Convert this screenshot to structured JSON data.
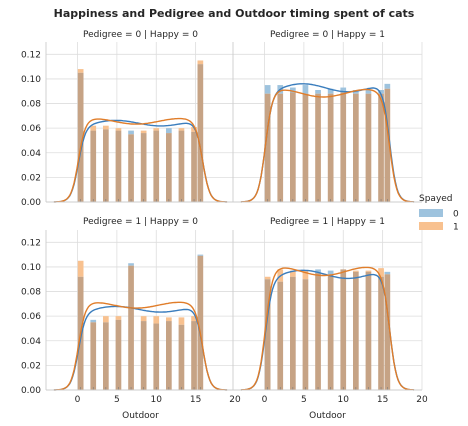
{
  "chart_data": {
    "type": "bar",
    "title": "Happiness and Pedigree and Outdoor timing spent of cats",
    "xlabel": "Outdoor",
    "ylabel": "",
    "xlim": [
      -4,
      20
    ],
    "ylim": [
      0,
      0.13
    ],
    "xticks": [
      "0",
      "5",
      "10",
      "15",
      "20"
    ],
    "yticks": [
      "0.00",
      "0.02",
      "0.04",
      "0.06",
      "0.08",
      "0.10",
      "0.12"
    ],
    "grid": true,
    "legend": {
      "title": "Spayed",
      "placement": "right",
      "entries": [
        {
          "label": "0",
          "color": "#9ec3de"
        },
        {
          "label": "1",
          "color": "#f8c18f"
        }
      ]
    },
    "overlap_color": "#c6a385",
    "line_colors": {
      "0": "#3a7dbd",
      "1": "#e07d2a"
    },
    "bin_edges": [
      0,
      0.8,
      1.6,
      2.4,
      3.2,
      4.0,
      4.8,
      5.6,
      6.4,
      7.2,
      8.0,
      8.8,
      9.6,
      10.4,
      11.2,
      12.0,
      12.8,
      13.6,
      14.4,
      15.2,
      16.0
    ],
    "panels": [
      {
        "title": "Pedigree = 0 | Happy = 0",
        "series": [
          {
            "name": "0",
            "values": [
              0.105,
              0,
              0.058,
              0,
              0.059,
              0,
              0.058,
              0,
              0.058,
              0,
              0.056,
              0,
              0.058,
              0,
              0.06,
              0,
              0.058,
              0,
              0.057,
              0.112
            ]
          },
          {
            "name": "1",
            "values": [
              0.108,
              0,
              0.062,
              0,
              0.062,
              0,
              0.06,
              0,
              0.055,
              0,
              0.058,
              0,
              0.06,
              0,
              0.056,
              0,
              0.06,
              0,
              0.061,
              0.115
            ]
          }
        ]
      },
      {
        "title": "Pedigree = 0 | Happy = 1",
        "series": [
          {
            "name": "0",
            "values": [
              0.095,
              0,
              0.095,
              0,
              0.093,
              0,
              0.095,
              0,
              0.091,
              0,
              0.092,
              0,
              0.093,
              0,
              0.091,
              0,
              0.091,
              0,
              0.091,
              0.096
            ]
          },
          {
            "name": "1",
            "values": [
              0.088,
              0,
              0.088,
              0,
              0.089,
              0,
              0.088,
              0,
              0.088,
              0,
              0.088,
              0,
              0.089,
              0,
              0.088,
              0,
              0.088,
              0,
              0.088,
              0.092
            ]
          }
        ]
      },
      {
        "title": "Pedigree = 1 | Happy = 0",
        "series": [
          {
            "name": "0",
            "values": [
              0.092,
              0,
              0.057,
              0,
              0.055,
              0,
              0.057,
              0,
              0.103,
              0,
              0.056,
              0,
              0.054,
              0,
              0.056,
              0,
              0.053,
              0,
              0.056,
              0.11
            ]
          },
          {
            "name": "1",
            "values": [
              0.105,
              0,
              0.055,
              0,
              0.06,
              0,
              0.06,
              0,
              0.101,
              0,
              0.06,
              0,
              0.06,
              0,
              0.059,
              0,
              0.059,
              0,
              0.06,
              0.109
            ]
          }
        ]
      },
      {
        "title": "Pedigree = 1 | Happy = 1",
        "series": [
          {
            "name": "0",
            "values": [
              0.09,
              0,
              0.088,
              0,
              0.092,
              0,
              0.09,
              0,
              0.098,
              0,
              0.097,
              0,
              0.098,
              0,
              0.096,
              0,
              0.096,
              0,
              0.092,
              0.096
            ]
          },
          {
            "name": "1",
            "values": [
              0.092,
              0,
              0.098,
              0,
              0.097,
              0,
              0.097,
              0,
              0.095,
              0,
              0.094,
              0,
              0.098,
              0,
              0.097,
              0,
              0.097,
              0,
              0.099,
              0.094
            ]
          }
        ]
      }
    ]
  }
}
